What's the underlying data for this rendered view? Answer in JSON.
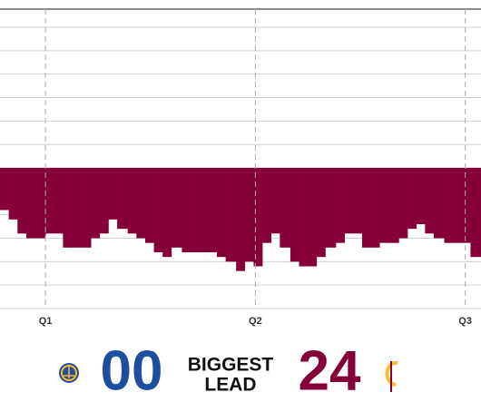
{
  "chart_data": {
    "type": "bar",
    "x": [
      9.4,
      9.9,
      10.4,
      10.9,
      11.5,
      12.0,
      12.5,
      13.0,
      13.5,
      14.1,
      14.6,
      15.1,
      15.6,
      16.1,
      16.7,
      17.2,
      17.7,
      18.2,
      18.7,
      19.2,
      19.8,
      20.3,
      20.8,
      21.3,
      21.8,
      22.3,
      22.9,
      23.4,
      23.9,
      24.4,
      24.9,
      25.4,
      26.0,
      26.5,
      27.0,
      27.5,
      28.0,
      28.6,
      29.1,
      29.6,
      30.1,
      30.6,
      31.1,
      31.7,
      32.2,
      32.7,
      33.2,
      33.7,
      34.2,
      34.8,
      35.3,
      35.8,
      36.3
    ],
    "values": [
      -9,
      -11,
      -14,
      -15,
      -15,
      -14,
      -14,
      -17,
      -17,
      -17,
      -15,
      -14,
      -11,
      -13,
      -14,
      -15,
      -16,
      -18,
      -19,
      -17,
      -18,
      -18,
      -18,
      -18,
      -19,
      -20,
      -22,
      -20,
      -21,
      -16,
      -14,
      -17,
      -20,
      -21,
      -21,
      -19,
      -17,
      -16,
      -14,
      -14,
      -17,
      -17,
      -16,
      -16,
      -15,
      -13,
      -12,
      -14,
      -15,
      -16,
      -16,
      -16,
      -19
    ],
    "color": "#860038",
    "xlim": [
      9.4,
      36.9
    ],
    "xticks": [
      {
        "value": 12,
        "label": "Q1"
      },
      {
        "value": 24,
        "label": "Q2"
      },
      {
        "value": 36,
        "label": "Q3"
      }
    ],
    "ylim": [
      -30,
      30
    ],
    "yticks": [
      -30,
      -25,
      -20,
      -15,
      -10,
      -5,
      0,
      5,
      10,
      15,
      20,
      25,
      30
    ],
    "grid": true
  },
  "biggest_lead": {
    "warriors": "00",
    "label": [
      "BIGGEST",
      "LEAD"
    ],
    "cavaliers": 24,
    "warriors_color": "#1d4ea0",
    "cavaliers_color": "#860038"
  }
}
